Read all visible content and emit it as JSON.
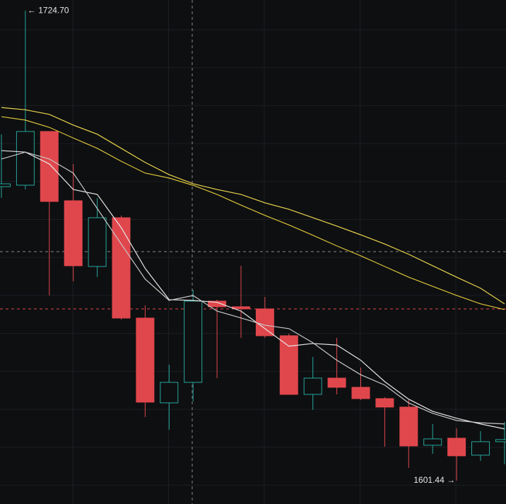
{
  "chart_data": {
    "type": "candlestick",
    "ylim": [
      1595.3,
      1727.5
    ],
    "up_color": "#26a69a",
    "down_color": "#e0474c",
    "candles": [
      {
        "open": 1678.55,
        "high": 1692.26,
        "low": 1675.58,
        "close": 1679.29
      },
      {
        "open": 1678.92,
        "high": 1724.7,
        "low": 1677.81,
        "close": 1693.01
      },
      {
        "open": 1693.01,
        "high": 1693.01,
        "low": 1650.0,
        "close": 1674.66
      },
      {
        "open": 1674.84,
        "high": 1684.48,
        "low": 1653.71,
        "close": 1657.79
      },
      {
        "open": 1657.6,
        "high": 1675.58,
        "low": 1654.82,
        "close": 1670.39
      },
      {
        "open": 1670.39,
        "high": 1670.95,
        "low": 1643.7,
        "close": 1644.07
      },
      {
        "open": 1644.07,
        "high": 1647.41,
        "low": 1618.12,
        "close": 1622.02
      },
      {
        "open": 1621.83,
        "high": 1631.84,
        "low": 1614.79,
        "close": 1627.21
      },
      {
        "open": 1627.21,
        "high": 1651.49,
        "low": 1622.2,
        "close": 1648.52
      },
      {
        "open": 1648.52,
        "high": 1648.89,
        "low": 1628.32,
        "close": 1647.04
      },
      {
        "open": 1647.04,
        "high": 1657.79,
        "low": 1638.88,
        "close": 1646.48
      },
      {
        "open": 1646.48,
        "high": 1649.63,
        "low": 1638.88,
        "close": 1639.44
      },
      {
        "open": 1639.44,
        "high": 1640.0,
        "low": 1624.05,
        "close": 1624.05
      },
      {
        "open": 1624.05,
        "high": 1633.88,
        "low": 1619.98,
        "close": 1628.32
      },
      {
        "open": 1628.32,
        "high": 1638.88,
        "low": 1624.05,
        "close": 1625.91
      },
      {
        "open": 1625.91,
        "high": 1631.1,
        "low": 1622.57,
        "close": 1622.94
      },
      {
        "open": 1622.94,
        "high": 1623.31,
        "low": 1610.34,
        "close": 1620.72
      },
      {
        "open": 1620.72,
        "high": 1622.57,
        "low": 1604.78,
        "close": 1610.52
      },
      {
        "open": 1610.71,
        "high": 1616.27,
        "low": 1608.46,
        "close": 1612.38
      },
      {
        "open": 1612.56,
        "high": 1615.16,
        "low": 1601.44,
        "close": 1607.93
      },
      {
        "open": 1608.11,
        "high": 1614.42,
        "low": 1606.63,
        "close": 1611.64
      },
      {
        "open": 1611.64,
        "high": 1616.83,
        "low": 1605.71,
        "close": 1612.2
      }
    ],
    "lines": [
      {
        "color": "#e6e6e6",
        "values": [
          1688.0,
          1687.6,
          1684.5,
          1677.8,
          1676.5,
          1667.8,
          1657.1,
          1648.9,
          1648.7,
          1648.2,
          1645.9,
          1641.3,
          1636.7,
          1637.4,
          1637.0,
          1633.0,
          1627.4,
          1622.8,
          1619.6,
          1617.8,
          1616.3,
          1615.0
        ]
      },
      {
        "color": "#c8c8c8",
        "values": [
          1685.8,
          1687.6,
          1685.8,
          1682.1,
          1672.8,
          1663.5,
          1654.3,
          1648.7,
          1650.0,
          1645.9,
          1644.1,
          1642.2,
          1641.3,
          1637.6,
          1633.0,
          1629.2,
          1626.5,
          1621.8,
          1619.1,
          1617.2,
          1616.6,
          1616.3
        ]
      },
      {
        "color": "#e8d44d",
        "values": [
          1699.3,
          1698.7,
          1697.5,
          1694.7,
          1692.3,
          1688.6,
          1684.9,
          1681.7,
          1679.3,
          1677.8,
          1676.5,
          1674.3,
          1672.6,
          1670.4,
          1668.2,
          1665.9,
          1663.5,
          1660.8,
          1657.8,
          1654.8,
          1651.9,
          1647.8
        ]
      },
      {
        "color": "#d9c23a",
        "values": [
          1696.9,
          1696.0,
          1694.1,
          1691.3,
          1688.6,
          1685.2,
          1682.1,
          1680.8,
          1678.9,
          1676.5,
          1673.7,
          1671.0,
          1668.5,
          1665.8,
          1663.0,
          1660.4,
          1657.6,
          1654.8,
          1652.4,
          1650.0,
          1647.8,
          1646.3
        ]
      }
    ],
    "max_label": "← 1724.70",
    "min_label": "1601.44 →"
  }
}
